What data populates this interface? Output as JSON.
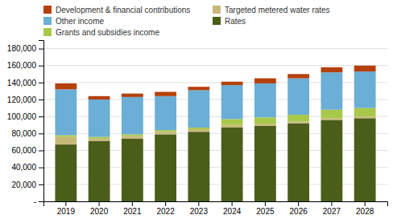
{
  "chart_data": {
    "type": "bar",
    "stacked": true,
    "grid": true,
    "legend": "top",
    "categories": [
      "2019",
      "2020",
      "2021",
      "2022",
      "2023",
      "2024",
      "2025",
      "2026",
      "2027",
      "2028"
    ],
    "series": [
      {
        "name": "Rates",
        "color": "#4a5e1a",
        "values": [
          67000,
          71000,
          74000,
          79000,
          82000,
          87000,
          89000,
          92000,
          96000,
          98000
        ]
      },
      {
        "name": "Targeted metered water rates",
        "color": "#c8b87a",
        "values": [
          9000,
          3000,
          3000,
          3000,
          3000,
          3000,
          2000,
          2000,
          2000,
          2000
        ]
      },
      {
        "name": "Grants and subsidies income",
        "color": "#a8c84a",
        "values": [
          2000,
          2000,
          2000,
          2000,
          2000,
          7000,
          8000,
          8000,
          10000,
          10000
        ]
      },
      {
        "name": "Other income",
        "color": "#6baed6",
        "values": [
          54000,
          44000,
          44000,
          40000,
          44000,
          40000,
          40000,
          43000,
          44000,
          43000
        ]
      },
      {
        "name": "Development & financial contributions",
        "color": "#b5400a",
        "values": [
          7000,
          4000,
          4000,
          5000,
          4000,
          4000,
          6000,
          5000,
          6000,
          7000
        ]
      }
    ],
    "ylim": [
      0,
      190000
    ],
    "yticks": [
      {
        "value": 0,
        "label": "-"
      },
      {
        "value": 20000,
        "label": "20,000"
      },
      {
        "value": 40000,
        "label": "40,000"
      },
      {
        "value": 60000,
        "label": "60,000"
      },
      {
        "value": 80000,
        "label": "80,000"
      },
      {
        "value": 100000,
        "label": "100,000"
      },
      {
        "value": 120000,
        "label": "120,000"
      },
      {
        "value": 140000,
        "label": "140,000"
      },
      {
        "value": 160000,
        "label": "160,000"
      },
      {
        "value": 180000,
        "label": "180,000"
      }
    ]
  }
}
